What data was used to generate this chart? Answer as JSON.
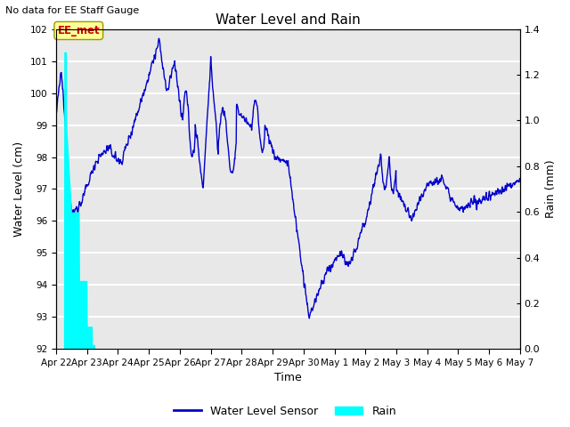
{
  "title": "Water Level and Rain",
  "top_left_text": "No data for EE Staff Gauge",
  "xlabel": "Time",
  "ylabel_left": "Water Level (cm)",
  "ylabel_right": "Rain (mm)",
  "ylim_left": [
    92.0,
    102.0
  ],
  "ylim_right": [
    0.0,
    1.4
  ],
  "yticks_left": [
    92.0,
    93.0,
    94.0,
    95.0,
    96.0,
    97.0,
    98.0,
    99.0,
    100.0,
    101.0,
    102.0
  ],
  "yticks_right": [
    0.0,
    0.2,
    0.4,
    0.6,
    0.8,
    1.0,
    1.2,
    1.4
  ],
  "water_color": "#0000cc",
  "rain_color": "#00ffff",
  "bg_color": "#e8e8e8",
  "legend_water": "Water Level Sensor",
  "legend_rain": "Rain",
  "annotation_text": "EE_met",
  "annotation_color": "#cc0000",
  "annotation_bg": "#ffff99",
  "annotation_edge": "#999900"
}
